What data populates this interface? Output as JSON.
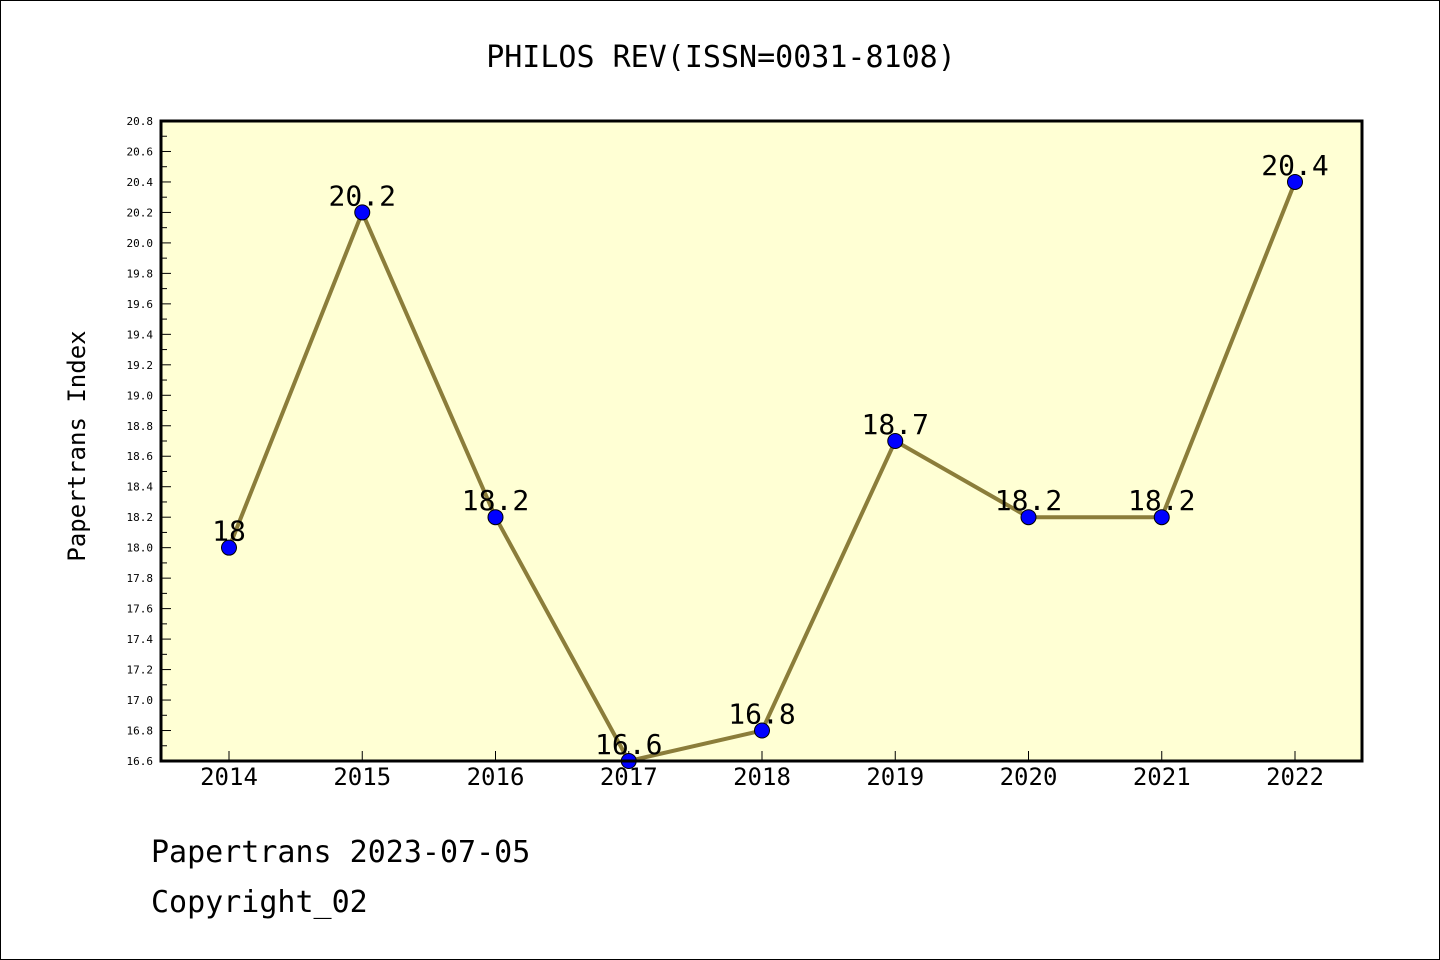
{
  "chart_data": {
    "type": "line",
    "title": "PHILOS REV(ISSN=0031-8108)",
    "xlabel": "",
    "ylabel": "Papertrans Index",
    "categories": [
      "2014",
      "2015",
      "2016",
      "2017",
      "2018",
      "2019",
      "2020",
      "2021",
      "2022"
    ],
    "series": [
      {
        "values": [
          18,
          20.2,
          18.2,
          16.6,
          16.8,
          18.7,
          18.2,
          18.2,
          20.4
        ],
        "labels": [
          "18",
          "20.2",
          "18.2",
          "16.6",
          "16.8",
          "18.7",
          "18.2",
          "18.2",
          "20.4"
        ]
      }
    ],
    "ylim": [
      16.6,
      20.8
    ],
    "yticks": [
      "16.6",
      "16.8",
      "17.0",
      "17.2",
      "17.4",
      "17.6",
      "17.8",
      "18.0",
      "18.2",
      "18.4",
      "18.6",
      "18.8",
      "19.0",
      "19.2",
      "19.4",
      "19.6",
      "19.8",
      "20.0",
      "20.2",
      "20.4",
      "20.6",
      "20.8"
    ],
    "grid": false,
    "legend": "none",
    "colors": {
      "plot_background": "#ffffd4",
      "line": "#8b7d3a",
      "marker": "#0000ff"
    }
  },
  "footer": {
    "line1": "Papertrans 2023-07-05",
    "line2": "Copyright_02"
  }
}
